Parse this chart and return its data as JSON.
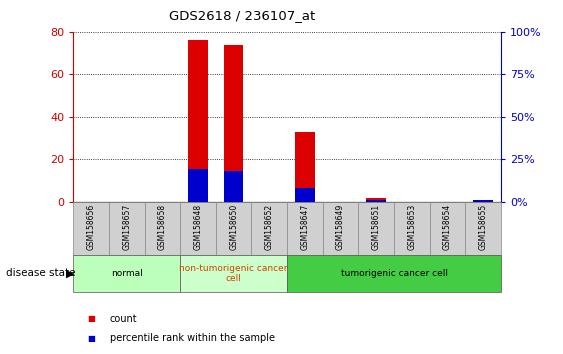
{
  "title": "GDS2618 / 236107_at",
  "samples": [
    "GSM158656",
    "GSM158657",
    "GSM158658",
    "GSM158648",
    "GSM158650",
    "GSM158652",
    "GSM158647",
    "GSM158649",
    "GSM158651",
    "GSM158653",
    "GSM158654",
    "GSM158655"
  ],
  "counts": [
    0,
    0,
    0,
    76,
    74,
    0,
    33,
    0,
    2,
    0,
    0,
    0
  ],
  "percentiles": [
    0,
    0,
    0,
    19,
    18,
    0,
    8,
    0,
    1,
    0,
    0,
    1
  ],
  "ylim_left": [
    0,
    80
  ],
  "ylim_right": [
    0,
    100
  ],
  "yticks_left": [
    0,
    20,
    40,
    60,
    80
  ],
  "yticks_right": [
    0,
    25,
    50,
    75,
    100
  ],
  "ytick_labels_right": [
    "0%",
    "25%",
    "50%",
    "75%",
    "100%"
  ],
  "groups": [
    {
      "label": "normal",
      "start": 0,
      "end": 3,
      "color": "#ccffcc",
      "text_color": "black"
    },
    {
      "label": "non-tumorigenic cancer\ncell",
      "start": 3,
      "end": 6,
      "color": "#ccffcc",
      "text_color": "#cc4400"
    },
    {
      "label": "tumorigenic cancer cell",
      "start": 6,
      "end": 12,
      "color": "#44dd44",
      "text_color": "black"
    }
  ],
  "bar_color_red": "#dd0000",
  "bar_color_blue": "#0000cc",
  "bar_width": 0.55,
  "tick_color_left": "#cc0000",
  "tick_color_right": "#0000cc",
  "disease_state_label": "disease state",
  "legend_count": "count",
  "legend_percentile": "percentile rank within the sample",
  "sample_box_color": "#d0d0d0",
  "normal_group_color": "#bbffbb",
  "nontumor_group_color": "#ccffcc",
  "tumor_group_color": "#44cc44"
}
